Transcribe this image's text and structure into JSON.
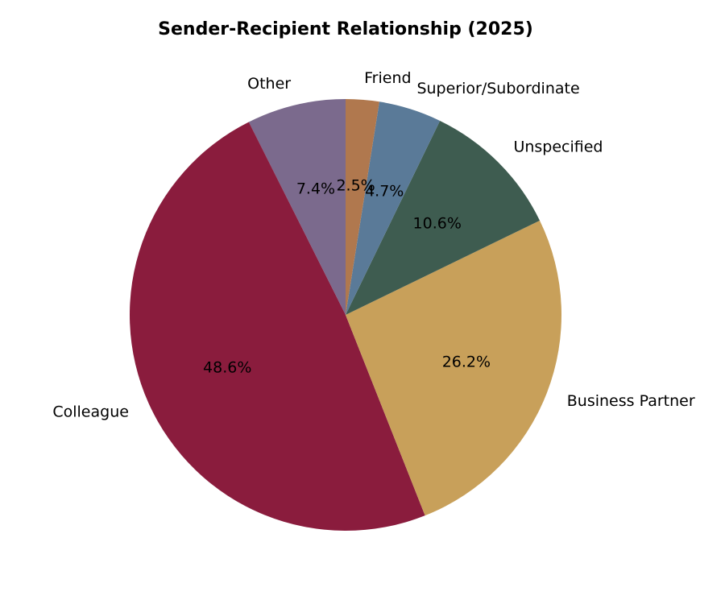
{
  "chart_data": {
    "type": "pie",
    "title": "Sender-Recipient Relationship (2025)",
    "start_angle_deg": 90,
    "direction": "counterclockwise",
    "slices": [
      {
        "label": "Other",
        "value": 7.4,
        "pct_label": "7.4%",
        "color": "#7b6a8d"
      },
      {
        "label": "Colleague",
        "value": 48.6,
        "pct_label": "48.6%",
        "color": "#8a1c3d"
      },
      {
        "label": "Business Partner",
        "value": 26.2,
        "pct_label": "26.2%",
        "color": "#c8a05a"
      },
      {
        "label": "Unspecified",
        "value": 10.6,
        "pct_label": "10.6%",
        "color": "#3e5c50"
      },
      {
        "label": "Superior/Subordinate",
        "value": 4.7,
        "pct_label": "4.7%",
        "color": "#5a7a98"
      },
      {
        "label": "Friend",
        "value": 2.5,
        "pct_label": "2.5%",
        "color": "#b0784e"
      }
    ]
  }
}
